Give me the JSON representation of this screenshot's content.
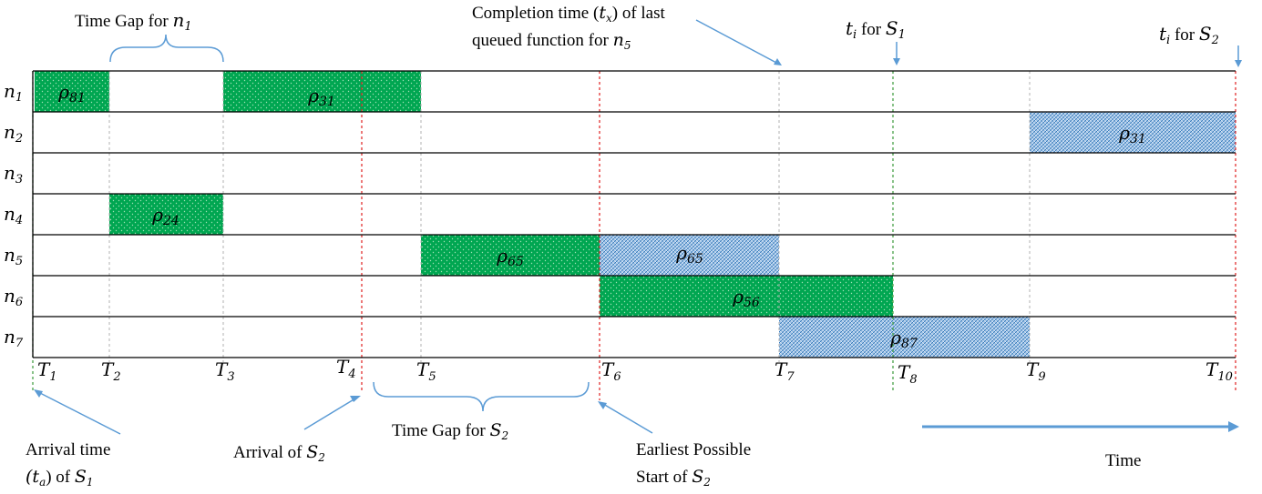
{
  "rows": [
    "n1",
    "n2",
    "n3",
    "n4",
    "n5",
    "n6",
    "n7"
  ],
  "ticks": [
    "T1",
    "T2",
    "T3",
    "T4",
    "T5",
    "T6",
    "T7",
    "T8",
    "T9",
    "T10"
  ],
  "tasks": [
    {
      "row": "n1",
      "label": "ρ81",
      "start": "T1",
      "end": "T2",
      "pattern": "green"
    },
    {
      "row": "n1",
      "label": "ρ31",
      "start": "T3",
      "end": "T5",
      "pattern": "green"
    },
    {
      "row": "n2",
      "label": "ρ31",
      "start": "T9",
      "end": "T10",
      "pattern": "blue"
    },
    {
      "row": "n4",
      "label": "ρ24",
      "start": "T2",
      "end": "T3",
      "pattern": "green"
    },
    {
      "row": "n5",
      "label": "ρ65",
      "start": "T5",
      "end": "T6",
      "pattern": "green"
    },
    {
      "row": "n5",
      "label": "ρ65",
      "start": "T6",
      "end": "T7",
      "pattern": "blue"
    },
    {
      "row": "n6",
      "label": "ρ56",
      "start": "T6",
      "end": "T8",
      "pattern": "green"
    },
    {
      "row": "n7",
      "label": "ρ87",
      "start": "T7",
      "end": "T9",
      "pattern": "blue"
    }
  ],
  "annotations": {
    "gap_n1": {
      "text": "Time Gap for ",
      "math": "n1"
    },
    "completion_line1": {
      "text": "Completion time (",
      "math": "tx",
      "tail": ") of last"
    },
    "completion_line2": {
      "text": "queued function for ",
      "math": "n5"
    },
    "ti_s1": {
      "math": "ti",
      "text": " for ",
      "math2": "S1"
    },
    "ti_s2": {
      "math": "ti",
      "text": " for ",
      "math2": "S2"
    },
    "arrival_line1": "Arrival time",
    "arrival_line2": {
      "math_open": "(ta) of ",
      "math": "S1"
    },
    "arrival_s2": {
      "text": "Arrival of ",
      "math": "S2"
    },
    "gap_s2": {
      "text": "Time Gap for  ",
      "math": "S2"
    },
    "earliest_line1": "Earliest Possible",
    "earliest_line2": {
      "text": "Start of ",
      "math": "S2"
    },
    "time": "Time"
  },
  "colors": {
    "green": "#00a651",
    "blue": "#9dc3e6",
    "blue_dark": "#2e75b6",
    "arrow": "#5b9bd5",
    "red_dash": "#e02020"
  }
}
